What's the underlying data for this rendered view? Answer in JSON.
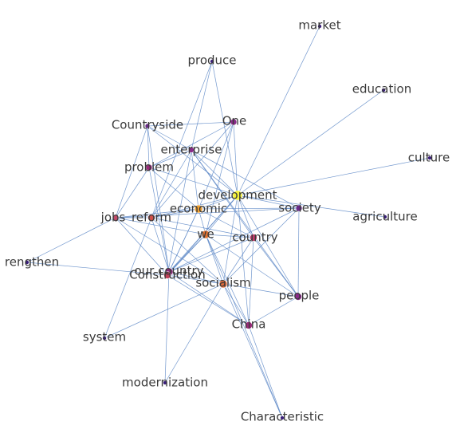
{
  "nodes": [
    {
      "id": "market",
      "label": "market",
      "color": "#3b1f7a"
    },
    {
      "id": "produce",
      "label": "produce",
      "color": "#3b1f7a"
    },
    {
      "id": "education",
      "label": "education",
      "color": "#3b1f7a"
    },
    {
      "id": "one",
      "label": "One",
      "color": "#8a2a8a"
    },
    {
      "id": "countryside",
      "label": "Countryside",
      "color": "#6a2a8a"
    },
    {
      "id": "enterprise",
      "label": "enterprise",
      "color": "#8a2a8a"
    },
    {
      "id": "culture",
      "label": "culture",
      "color": "#3b1f7a"
    },
    {
      "id": "problem",
      "label": "problem",
      "color": "#9a2a7a"
    },
    {
      "id": "development",
      "label": "development",
      "color": "#f4f23a"
    },
    {
      "id": "economic",
      "label": "economic",
      "color": "#f0a030"
    },
    {
      "id": "society",
      "label": "society",
      "color": "#6a2a8a"
    },
    {
      "id": "jobs",
      "label": "jobs",
      "color": "#c04a6a"
    },
    {
      "id": "reform",
      "label": "reform",
      "color": "#d0504a"
    },
    {
      "id": "agriculture",
      "label": "agriculture",
      "color": "#3b1f7a"
    },
    {
      "id": "we",
      "label": "we",
      "color": "#e07030"
    },
    {
      "id": "country",
      "label": "country",
      "color": "#c03a6a"
    },
    {
      "id": "strengthen",
      "label": "rengthen",
      "color": "#3b1f7a"
    },
    {
      "id": "our_country",
      "label": "our country",
      "color": "#8a2a7a"
    },
    {
      "id": "construction",
      "label": "Construction",
      "color": "#c0405a"
    },
    {
      "id": "socialism",
      "label": "socialism",
      "color": "#e06a3a"
    },
    {
      "id": "people",
      "label": "people",
      "color": "#8a2a8a"
    },
    {
      "id": "china",
      "label": "China",
      "color": "#9a2a7a"
    },
    {
      "id": "system",
      "label": "system",
      "color": "#3b1f7a"
    },
    {
      "id": "modernization",
      "label": "modernization",
      "color": "#3b1f7a"
    },
    {
      "id": "characteristic",
      "label": "Characteristic",
      "color": "#3b1f7a"
    }
  ],
  "edges": [
    [
      "market",
      "development"
    ],
    [
      "education",
      "development"
    ],
    [
      "culture",
      "development"
    ],
    [
      "agriculture",
      "development"
    ],
    [
      "produce",
      "enterprise"
    ],
    [
      "produce",
      "reform"
    ],
    [
      "produce",
      "development"
    ],
    [
      "one",
      "countryside"
    ],
    [
      "one",
      "development"
    ],
    [
      "one",
      "economic"
    ],
    [
      "one",
      "we"
    ],
    [
      "one",
      "reform"
    ],
    [
      "one",
      "problem"
    ],
    [
      "countryside",
      "enterprise"
    ],
    [
      "countryside",
      "problem"
    ],
    [
      "countryside",
      "jobs"
    ],
    [
      "countryside",
      "development"
    ],
    [
      "countryside",
      "our_country"
    ],
    [
      "enterprise",
      "problem"
    ],
    [
      "enterprise",
      "development"
    ],
    [
      "enterprise",
      "economic"
    ],
    [
      "enterprise",
      "reform"
    ],
    [
      "enterprise",
      "society"
    ],
    [
      "enterprise",
      "country"
    ],
    [
      "enterprise",
      "construction"
    ],
    [
      "enterprise",
      "people"
    ],
    [
      "problem",
      "jobs"
    ],
    [
      "problem",
      "economic"
    ],
    [
      "problem",
      "development"
    ],
    [
      "problem",
      "our_country"
    ],
    [
      "development",
      "economic"
    ],
    [
      "development",
      "society"
    ],
    [
      "development",
      "we"
    ],
    [
      "development",
      "country"
    ],
    [
      "development",
      "construction"
    ],
    [
      "development",
      "our_country"
    ],
    [
      "development",
      "socialism"
    ],
    [
      "development",
      "people"
    ],
    [
      "development",
      "china"
    ],
    [
      "development",
      "reform"
    ],
    [
      "economic",
      "jobs"
    ],
    [
      "economic",
      "reform"
    ],
    [
      "economic",
      "we"
    ],
    [
      "economic",
      "society"
    ],
    [
      "economic",
      "construction"
    ],
    [
      "economic",
      "our_country"
    ],
    [
      "economic",
      "country"
    ],
    [
      "jobs",
      "reform"
    ],
    [
      "jobs",
      "strengthen"
    ],
    [
      "jobs",
      "we"
    ],
    [
      "jobs",
      "construction"
    ],
    [
      "jobs",
      "socialism"
    ],
    [
      "jobs",
      "society"
    ],
    [
      "reform",
      "country"
    ],
    [
      "reform",
      "our_country"
    ],
    [
      "reform",
      "system"
    ],
    [
      "reform",
      "socialism"
    ],
    [
      "we",
      "country"
    ],
    [
      "we",
      "our_country"
    ],
    [
      "we",
      "construction"
    ],
    [
      "we",
      "socialism"
    ],
    [
      "we",
      "china"
    ],
    [
      "we",
      "people"
    ],
    [
      "we",
      "characteristic"
    ],
    [
      "country",
      "our_country"
    ],
    [
      "country",
      "people"
    ],
    [
      "country",
      "socialism"
    ],
    [
      "country",
      "china"
    ],
    [
      "society",
      "people"
    ],
    [
      "society",
      "our_country"
    ],
    [
      "society",
      "socialism"
    ],
    [
      "strengthen",
      "construction"
    ],
    [
      "our_country",
      "socialism"
    ],
    [
      "our_country",
      "modernization"
    ],
    [
      "our_country",
      "china"
    ],
    [
      "construction",
      "socialism"
    ],
    [
      "construction",
      "china"
    ],
    [
      "socialism",
      "people"
    ],
    [
      "socialism",
      "china"
    ],
    [
      "socialism",
      "characteristic"
    ],
    [
      "socialism",
      "system"
    ],
    [
      "socialism",
      "modernization"
    ],
    [
      "china",
      "people"
    ],
    [
      "china",
      "characteristic"
    ]
  ]
}
